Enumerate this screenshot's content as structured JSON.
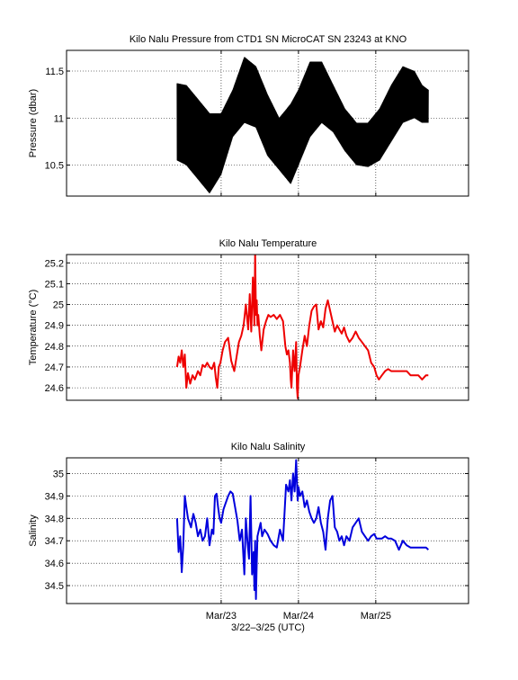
{
  "xaxis": {
    "label": "3/22–3/25 (UTC)",
    "range": [
      -2.0,
      3.2
    ],
    "ticks": [
      {
        "v": 0.0,
        "label": "Mar/23"
      },
      {
        "v": 1.0,
        "label": "Mar/24"
      },
      {
        "v": 2.0,
        "label": "Mar/25"
      }
    ]
  },
  "chart_data": [
    {
      "type": "line",
      "title": "Kilo Nalu Pressure from CTD1 SN MicroCAT SN 23243 at KNO",
      "ylabel": "Pressure (dbar)",
      "ylim": [
        10.17,
        11.72
      ],
      "yticks": [
        10.5,
        11,
        11.5
      ],
      "ytick_labels": [
        "10.5",
        "11",
        "11.5"
      ],
      "grid": true,
      "color": "#000000",
      "band": true,
      "series": [
        {
          "name": "",
          "x": [
            -0.57,
            -0.45,
            -0.3,
            -0.15,
            0.0,
            0.15,
            0.3,
            0.45,
            0.6,
            0.75,
            0.9,
            1.0,
            1.15,
            1.3,
            1.45,
            1.6,
            1.75,
            1.9,
            2.05,
            2.2,
            2.35,
            2.5,
            2.6,
            2.68
          ],
          "upper": [
            11.37,
            11.35,
            11.2,
            11.05,
            11.05,
            11.3,
            11.65,
            11.55,
            11.25,
            11.0,
            11.15,
            11.3,
            11.6,
            11.6,
            11.35,
            11.1,
            10.95,
            10.95,
            11.1,
            11.35,
            11.55,
            11.5,
            11.35,
            11.3
          ],
          "lower": [
            10.55,
            10.5,
            10.35,
            10.2,
            10.4,
            10.8,
            10.95,
            10.9,
            10.6,
            10.45,
            10.3,
            10.5,
            10.8,
            10.95,
            10.85,
            10.65,
            10.5,
            10.48,
            10.55,
            10.75,
            10.95,
            11.0,
            10.95,
            10.95
          ]
        }
      ]
    },
    {
      "type": "line",
      "title": "Kilo Nalu Temperature",
      "ylabel": "Temperature (°C)",
      "ylim": [
        24.54,
        25.24
      ],
      "yticks": [
        24.6,
        24.7,
        24.8,
        24.9,
        25,
        25.1,
        25.2
      ],
      "ytick_labels": [
        "24.6",
        "24.7",
        "24.8",
        "24.9",
        "25",
        "25.1",
        "25.2"
      ],
      "grid": true,
      "color": "#ee0000",
      "series": [
        {
          "name": "",
          "x": [
            -0.57,
            -0.55,
            -0.53,
            -0.51,
            -0.49,
            -0.47,
            -0.45,
            -0.43,
            -0.4,
            -0.37,
            -0.34,
            -0.3,
            -0.27,
            -0.24,
            -0.21,
            -0.18,
            -0.15,
            -0.12,
            -0.09,
            -0.07,
            -0.05,
            -0.03,
            -0.01,
            0.02,
            0.05,
            0.09,
            0.13,
            0.17,
            0.2,
            0.23,
            0.26,
            0.29,
            0.32,
            0.35,
            0.37,
            0.39,
            0.41,
            0.43,
            0.44,
            0.45,
            0.46,
            0.47,
            0.48,
            0.5,
            0.52,
            0.55,
            0.58,
            0.61,
            0.64,
            0.68,
            0.72,
            0.76,
            0.8,
            0.83,
            0.85,
            0.87,
            0.89,
            0.9,
            0.91,
            0.93,
            0.95,
            0.97,
            0.98,
            0.99,
            1.0,
            1.02,
            1.05,
            1.08,
            1.11,
            1.14,
            1.17,
            1.2,
            1.23,
            1.26,
            1.29,
            1.32,
            1.35,
            1.38,
            1.41,
            1.44,
            1.47,
            1.5,
            1.53,
            1.56,
            1.59,
            1.62,
            1.66,
            1.7,
            1.74,
            1.78,
            1.82,
            1.86,
            1.9,
            1.94,
            1.98,
            2.01,
            2.04,
            2.08,
            2.12,
            2.16,
            2.2,
            2.25,
            2.3,
            2.35,
            2.4,
            2.45,
            2.5,
            2.55,
            2.6,
            2.65,
            2.68
          ],
          "values": [
            24.7,
            24.75,
            24.72,
            24.78,
            24.7,
            24.76,
            24.6,
            24.67,
            24.62,
            24.66,
            24.64,
            24.68,
            24.66,
            24.71,
            24.7,
            24.72,
            24.7,
            24.69,
            24.72,
            24.65,
            24.6,
            24.7,
            24.72,
            24.78,
            24.82,
            24.84,
            24.73,
            24.68,
            24.75,
            24.82,
            24.85,
            24.9,
            25.0,
            24.88,
            25.05,
            24.87,
            25.13,
            24.9,
            25.25,
            24.95,
            25.02,
            24.9,
            24.95,
            24.85,
            24.78,
            24.88,
            24.92,
            24.95,
            24.94,
            24.95,
            24.93,
            24.95,
            24.92,
            24.8,
            24.76,
            24.78,
            24.72,
            24.64,
            24.6,
            24.78,
            24.68,
            24.82,
            24.6,
            24.55,
            24.66,
            24.7,
            24.78,
            24.85,
            24.8,
            24.9,
            24.97,
            24.99,
            25.0,
            24.88,
            24.92,
            24.89,
            24.98,
            25.02,
            24.97,
            24.92,
            24.87,
            24.9,
            24.88,
            24.86,
            24.89,
            24.85,
            24.82,
            24.84,
            24.87,
            24.84,
            24.82,
            24.8,
            24.78,
            24.72,
            24.7,
            24.66,
            24.64,
            24.66,
            24.68,
            24.69,
            24.68,
            24.68,
            24.68,
            24.68,
            24.68,
            24.66,
            24.66,
            24.66,
            24.64,
            24.66,
            24.66
          ]
        }
      ]
    },
    {
      "type": "line",
      "title": "Kilo Nalu  Salinity",
      "ylabel": "Salinity",
      "ylim": [
        34.42,
        35.07
      ],
      "yticks": [
        34.5,
        34.6,
        34.7,
        34.8,
        34.9,
        35
      ],
      "ytick_labels": [
        "34.5",
        "34.6",
        "34.7",
        "34.8",
        "34.9",
        "35"
      ],
      "grid": true,
      "color": "#0000dd",
      "series": [
        {
          "name": "",
          "x": [
            -0.57,
            -0.55,
            -0.53,
            -0.51,
            -0.49,
            -0.47,
            -0.45,
            -0.43,
            -0.41,
            -0.39,
            -0.36,
            -0.33,
            -0.3,
            -0.27,
            -0.24,
            -0.21,
            -0.18,
            -0.15,
            -0.12,
            -0.1,
            -0.08,
            -0.06,
            -0.04,
            -0.02,
            0.0,
            0.03,
            0.06,
            0.09,
            0.12,
            0.15,
            0.18,
            0.21,
            0.24,
            0.27,
            0.3,
            0.32,
            0.34,
            0.36,
            0.38,
            0.4,
            0.42,
            0.43,
            0.44,
            0.45,
            0.46,
            0.47,
            0.49,
            0.51,
            0.53,
            0.56,
            0.6,
            0.64,
            0.68,
            0.72,
            0.76,
            0.8,
            0.84,
            0.87,
            0.89,
            0.91,
            0.93,
            0.95,
            0.97,
            0.99,
            1.0,
            1.02,
            1.05,
            1.08,
            1.11,
            1.14,
            1.17,
            1.2,
            1.23,
            1.26,
            1.29,
            1.32,
            1.35,
            1.38,
            1.41,
            1.44,
            1.47,
            1.5,
            1.53,
            1.56,
            1.59,
            1.62,
            1.66,
            1.7,
            1.74,
            1.78,
            1.82,
            1.86,
            1.9,
            1.94,
            1.98,
            2.01,
            2.04,
            2.08,
            2.12,
            2.16,
            2.2,
            2.25,
            2.3,
            2.35,
            2.4,
            2.45,
            2.5,
            2.55,
            2.6,
            2.65,
            2.68
          ],
          "values": [
            34.8,
            34.65,
            34.72,
            34.56,
            34.68,
            34.9,
            34.85,
            34.8,
            34.78,
            34.76,
            34.82,
            34.78,
            34.72,
            34.75,
            34.7,
            34.72,
            34.8,
            34.68,
            34.75,
            34.73,
            34.9,
            34.91,
            34.85,
            34.8,
            34.78,
            34.84,
            34.87,
            34.9,
            34.92,
            34.91,
            34.85,
            34.79,
            34.7,
            34.75,
            34.55,
            34.8,
            34.7,
            34.62,
            34.9,
            34.55,
            34.65,
            34.48,
            34.7,
            34.44,
            34.6,
            34.72,
            34.75,
            34.78,
            34.72,
            34.75,
            34.73,
            34.7,
            34.68,
            34.67,
            34.75,
            34.7,
            34.95,
            34.92,
            34.97,
            34.88,
            35.0,
            34.92,
            35.06,
            34.88,
            34.94,
            34.9,
            34.92,
            34.85,
            34.88,
            34.83,
            34.8,
            34.78,
            34.8,
            34.85,
            34.78,
            34.74,
            34.66,
            34.8,
            34.88,
            34.9,
            34.76,
            34.74,
            34.7,
            34.72,
            34.68,
            34.72,
            34.7,
            34.76,
            34.78,
            34.8,
            34.74,
            34.72,
            34.7,
            34.72,
            34.73,
            34.71,
            34.71,
            34.71,
            34.72,
            34.71,
            34.71,
            34.7,
            34.66,
            34.7,
            34.68,
            34.67,
            34.67,
            34.67,
            34.67,
            34.67,
            34.66
          ]
        }
      ]
    }
  ]
}
